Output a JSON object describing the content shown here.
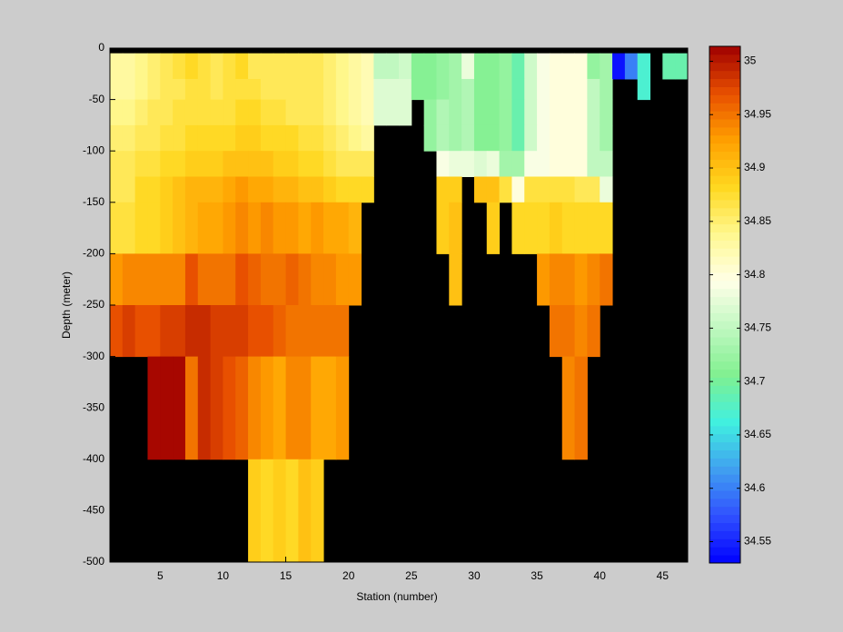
{
  "chart_data": {
    "type": "heatmap",
    "xlabel": "Station (number)",
    "ylabel": "Depth (meter)",
    "xlim": [
      1,
      47
    ],
    "ylim": [
      -500,
      0
    ],
    "xticks": [
      5,
      10,
      15,
      20,
      25,
      30,
      35,
      40,
      45
    ],
    "yticks": [
      0,
      -50,
      -100,
      -150,
      -200,
      -250,
      -300,
      -350,
      -400,
      -450,
      -500
    ],
    "x_bins": [
      1,
      2,
      3,
      4,
      5,
      6,
      7,
      8,
      9,
      10,
      11,
      12,
      13,
      14,
      15,
      16,
      17,
      18,
      19,
      20,
      21,
      22,
      23,
      24,
      25,
      26,
      27,
      28,
      29,
      30,
      31,
      32,
      33,
      34,
      35,
      36,
      37,
      38,
      39,
      40,
      41,
      42,
      43,
      44,
      45,
      46,
      47
    ],
    "y_bins": [
      -5,
      -30,
      -50,
      -75,
      -100,
      -125,
      -150,
      -200,
      -250,
      -300,
      -400,
      -500
    ],
    "values": [
      [
        34.83,
        34.83,
        34.84,
        34.85,
        34.86,
        34.87,
        34.88,
        34.87,
        34.86,
        34.87,
        34.88,
        34.86,
        34.86,
        34.86,
        34.86,
        34.86,
        34.86,
        34.85,
        34.84,
        34.83,
        34.82,
        34.75,
        34.75,
        34.76,
        34.71,
        34.71,
        34.72,
        34.73,
        34.78,
        34.71,
        34.71,
        34.72,
        34.69,
        34.76,
        34.79,
        34.8,
        34.8,
        34.8,
        34.72,
        34.73,
        34.54,
        34.6,
        34.67,
        null,
        34.69,
        34.69
      ],
      [
        34.83,
        34.83,
        34.84,
        34.85,
        34.86,
        34.86,
        34.87,
        34.87,
        34.86,
        34.87,
        34.87,
        34.87,
        34.86,
        34.86,
        34.86,
        34.86,
        34.86,
        34.85,
        34.84,
        34.83,
        34.82,
        34.77,
        34.77,
        34.77,
        34.71,
        34.71,
        34.72,
        34.73,
        34.74,
        34.71,
        34.71,
        34.72,
        34.69,
        34.76,
        34.79,
        34.8,
        34.8,
        34.8,
        34.75,
        34.73,
        null,
        null,
        34.67,
        null,
        null,
        null
      ],
      [
        34.84,
        34.84,
        34.85,
        34.86,
        34.86,
        34.87,
        34.87,
        34.87,
        34.87,
        34.87,
        34.88,
        34.88,
        34.87,
        34.87,
        34.86,
        34.86,
        34.86,
        34.85,
        34.84,
        34.83,
        34.82,
        34.77,
        34.77,
        34.77,
        null,
        34.72,
        34.74,
        34.73,
        34.74,
        34.71,
        34.71,
        34.72,
        34.69,
        34.76,
        34.79,
        34.8,
        34.8,
        34.8,
        34.75,
        34.73,
        null,
        null,
        null,
        null,
        null,
        null
      ],
      [
        34.85,
        34.85,
        34.86,
        34.86,
        34.87,
        34.87,
        34.88,
        34.88,
        34.88,
        34.88,
        34.89,
        34.89,
        34.88,
        34.88,
        34.88,
        34.87,
        34.87,
        34.86,
        34.85,
        34.84,
        34.83,
        null,
        null,
        null,
        null,
        34.72,
        34.74,
        34.73,
        34.74,
        34.71,
        34.71,
        34.72,
        34.69,
        34.76,
        34.79,
        34.8,
        34.8,
        34.8,
        34.75,
        34.73,
        null,
        null,
        null,
        null,
        null,
        null
      ],
      [
        34.86,
        34.86,
        34.87,
        34.87,
        34.88,
        34.88,
        34.89,
        34.89,
        34.89,
        34.9,
        34.9,
        34.9,
        34.9,
        34.89,
        34.89,
        34.88,
        34.88,
        34.87,
        34.86,
        34.86,
        34.86,
        null,
        null,
        null,
        null,
        null,
        34.79,
        34.78,
        34.78,
        34.77,
        34.78,
        34.73,
        34.73,
        34.79,
        34.79,
        34.8,
        34.8,
        34.8,
        34.75,
        34.75,
        null,
        null,
        null,
        null,
        null,
        null
      ],
      [
        34.86,
        34.86,
        34.88,
        34.88,
        34.89,
        34.9,
        34.91,
        34.91,
        34.91,
        34.92,
        34.93,
        34.92,
        34.92,
        34.91,
        34.91,
        34.9,
        34.9,
        34.89,
        34.88,
        34.88,
        34.88,
        null,
        null,
        null,
        null,
        null,
        34.89,
        34.89,
        null,
        34.9,
        34.9,
        34.87,
        34.8,
        34.87,
        34.87,
        34.87,
        34.87,
        34.86,
        34.86,
        34.78,
        null,
        null,
        null,
        null,
        null,
        null
      ],
      [
        34.87,
        34.87,
        34.88,
        34.88,
        34.89,
        34.9,
        34.91,
        34.92,
        34.92,
        34.93,
        34.94,
        34.93,
        34.94,
        34.93,
        34.93,
        34.92,
        34.93,
        34.92,
        34.92,
        34.91,
        null,
        null,
        null,
        null,
        null,
        null,
        34.89,
        34.9,
        null,
        null,
        34.89,
        null,
        34.88,
        34.88,
        34.88,
        34.89,
        34.88,
        34.88,
        34.88,
        34.88,
        null,
        null,
        null,
        null,
        null,
        null
      ],
      [
        34.93,
        34.94,
        34.94,
        34.94,
        34.94,
        34.94,
        34.97,
        34.95,
        34.95,
        34.95,
        34.97,
        34.96,
        34.95,
        34.95,
        34.96,
        34.95,
        34.94,
        34.94,
        34.93,
        34.93,
        null,
        null,
        null,
        null,
        null,
        null,
        null,
        34.9,
        null,
        null,
        null,
        null,
        null,
        null,
        34.93,
        34.94,
        34.94,
        34.93,
        34.94,
        34.95,
        null,
        null,
        null,
        null,
        null,
        null
      ],
      [
        34.97,
        34.98,
        34.97,
        34.97,
        34.98,
        34.98,
        34.99,
        34.99,
        34.98,
        34.98,
        34.98,
        34.97,
        34.97,
        34.96,
        34.95,
        34.95,
        34.95,
        34.95,
        34.95,
        null,
        null,
        null,
        null,
        null,
        null,
        null,
        null,
        null,
        null,
        null,
        null,
        null,
        null,
        null,
        null,
        34.95,
        34.95,
        34.94,
        34.95,
        null,
        null,
        null,
        null,
        null,
        null,
        null
      ],
      [
        null,
        null,
        null,
        35.01,
        35.01,
        35.01,
        34.95,
        34.99,
        34.98,
        34.97,
        34.96,
        34.94,
        34.93,
        34.92,
        34.94,
        34.94,
        34.92,
        34.92,
        34.93,
        null,
        null,
        null,
        null,
        null,
        null,
        null,
        null,
        null,
        null,
        null,
        null,
        null,
        null,
        null,
        null,
        null,
        34.94,
        34.95,
        null,
        null,
        null,
        null,
        null,
        null,
        null,
        null
      ],
      [
        null,
        null,
        null,
        null,
        null,
        null,
        null,
        null,
        null,
        null,
        null,
        34.89,
        34.88,
        34.89,
        34.88,
        34.9,
        34.89,
        null,
        null,
        null,
        null,
        null,
        null,
        null,
        null,
        null,
        null,
        null,
        null,
        null,
        null,
        null,
        null,
        null,
        null,
        null,
        null,
        null,
        null,
        null,
        null,
        null,
        null,
        null,
        null,
        null
      ]
    ],
    "missing_color": "#000000",
    "colormap": [
      "#0000ff",
      "#3050ff",
      "#40a0f0",
      "#40f0e0",
      "#80f090",
      "#c0f8c0",
      "#ffffe8",
      "#fff890",
      "#ffd820",
      "#ffa000",
      "#e85000",
      "#a00000"
    ],
    "clim": [
      34.53,
      35.014
    ],
    "cticks": [
      34.55,
      34.6,
      34.65,
      34.7,
      34.75,
      34.8,
      34.85,
      34.9,
      34.95,
      35
    ]
  }
}
